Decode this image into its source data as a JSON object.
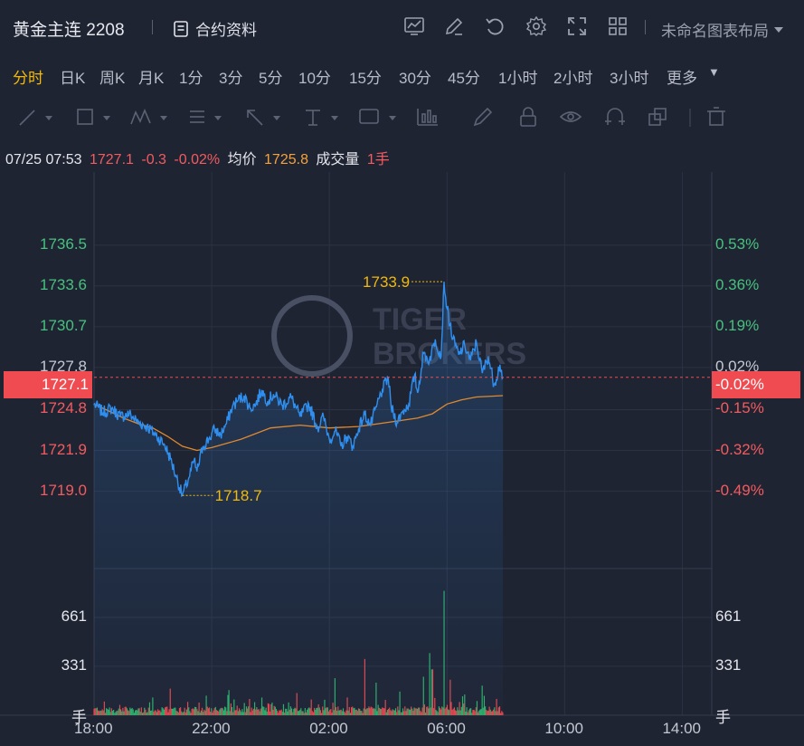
{
  "header": {
    "title": "黄金主连 2208",
    "contract_info_label": "合约资料",
    "layout_label": "未命名图表布局",
    "icons": [
      "chart-icon",
      "edit-icon",
      "undo-icon",
      "gear-icon",
      "fullscreen-icon",
      "grid-icon",
      "doc-icon",
      "caret-down-icon"
    ]
  },
  "periods": [
    "分时",
    "日K",
    "周K",
    "月K",
    "1分",
    "3分",
    "5分",
    "10分",
    "15分",
    "30分",
    "45分",
    "1小时",
    "2小时",
    "3小时",
    "更多"
  ],
  "active_period": "分时",
  "quote": {
    "datetime": "07/25 07:53",
    "price": "1727.1",
    "change": "-0.3",
    "change_pct": "-0.02%",
    "avg_label": "均价",
    "avg_value": "1725.8",
    "volume_label": "成交量",
    "volume_value": "1手"
  },
  "watermark": "TIGER BROKERS",
  "colors": {
    "bg": "#1f2433",
    "price_line": "#2f8ff0",
    "avg_line": "#e0892f",
    "up": "#f25b5f",
    "down": "#47c17e",
    "accent": "#f0b90b"
  },
  "chart_data": {
    "type": "line",
    "price_axis": {
      "left_labels": [
        "1736.5",
        "1733.6",
        "1730.7",
        "1727.8",
        "1724.8",
        "1721.9",
        "1719.0"
      ],
      "right_labels": [
        "0.53%",
        "0.36%",
        "0.19%",
        "0.02%",
        "-0.15%",
        "-0.32%",
        "-0.49%"
      ],
      "ylim": [
        1713.5,
        1741.7
      ]
    },
    "x_labels": [
      "18:00",
      "22:00",
      "02:00",
      "06:00",
      "10:00",
      "14:00"
    ],
    "x_range_hours": [
      0,
      21
    ],
    "current_price": {
      "value": 1727.1,
      "left_label": "1727.1",
      "right_label": "-0.02%"
    },
    "annotations": {
      "high": {
        "label": "1733.9",
        "value": 1733.9,
        "t": 11.9
      },
      "low": {
        "label": "1718.7",
        "value": 1718.7,
        "t": 3.0
      }
    },
    "price_keypoints": [
      [
        0.0,
        1725.2
      ],
      [
        0.3,
        1724.6
      ],
      [
        0.6,
        1724.9
      ],
      [
        0.9,
        1724.3
      ],
      [
        1.2,
        1724.5
      ],
      [
        1.5,
        1723.9
      ],
      [
        1.8,
        1723.6
      ],
      [
        2.1,
        1723.0
      ],
      [
        2.4,
        1722.3
      ],
      [
        2.6,
        1721.3
      ],
      [
        2.8,
        1720.0
      ],
      [
        3.0,
        1718.7
      ],
      [
        3.2,
        1719.8
      ],
      [
        3.4,
        1721.2
      ],
      [
        3.5,
        1720.4
      ],
      [
        3.7,
        1722.2
      ],
      [
        3.9,
        1722.7
      ],
      [
        4.1,
        1723.4
      ],
      [
        4.3,
        1723.0
      ],
      [
        4.5,
        1723.8
      ],
      [
        4.7,
        1725.0
      ],
      [
        4.9,
        1725.5
      ],
      [
        5.1,
        1725.8
      ],
      [
        5.3,
        1724.9
      ],
      [
        5.5,
        1725.2
      ],
      [
        5.7,
        1726.2
      ],
      [
        5.9,
        1725.4
      ],
      [
        6.1,
        1725.9
      ],
      [
        6.4,
        1725.1
      ],
      [
        6.7,
        1725.7
      ],
      [
        7.0,
        1724.3
      ],
      [
        7.3,
        1725.2
      ],
      [
        7.6,
        1723.5
      ],
      [
        7.8,
        1724.3
      ],
      [
        8.0,
        1722.7
      ],
      [
        8.2,
        1723.3
      ],
      [
        8.4,
        1722.2
      ],
      [
        8.6,
        1722.9
      ],
      [
        8.8,
        1722.2
      ],
      [
        9.0,
        1723.5
      ],
      [
        9.2,
        1724.5
      ],
      [
        9.4,
        1723.7
      ],
      [
        9.6,
        1725.0
      ],
      [
        9.8,
        1726.2
      ],
      [
        10.0,
        1727.1
      ],
      [
        10.1,
        1725.0
      ],
      [
        10.3,
        1723.9
      ],
      [
        10.5,
        1724.7
      ],
      [
        10.7,
        1725.2
      ],
      [
        10.9,
        1727.3
      ],
      [
        11.0,
        1726.0
      ],
      [
        11.2,
        1728.8
      ],
      [
        11.4,
        1728.3
      ],
      [
        11.6,
        1729.8
      ],
      [
        11.8,
        1728.6
      ],
      [
        11.9,
        1733.9
      ],
      [
        12.0,
        1732.0
      ],
      [
        12.2,
        1729.8
      ],
      [
        12.4,
        1728.7
      ],
      [
        12.6,
        1729.4
      ],
      [
        12.8,
        1728.3
      ],
      [
        13.0,
        1729.6
      ],
      [
        13.2,
        1727.4
      ],
      [
        13.4,
        1728.6
      ],
      [
        13.6,
        1726.6
      ],
      [
        13.8,
        1728.0
      ],
      [
        13.9,
        1727.1
      ]
    ],
    "avg_keypoints": [
      [
        0.0,
        1725.2
      ],
      [
        0.5,
        1724.7
      ],
      [
        1.0,
        1724.2
      ],
      [
        1.5,
        1723.8
      ],
      [
        2.0,
        1723.5
      ],
      [
        2.5,
        1722.9
      ],
      [
        3.0,
        1722.2
      ],
      [
        3.5,
        1721.9
      ],
      [
        4.0,
        1722.1
      ],
      [
        4.5,
        1722.4
      ],
      [
        5.0,
        1722.7
      ],
      [
        5.5,
        1723.1
      ],
      [
        6.0,
        1723.5
      ],
      [
        7.0,
        1723.7
      ],
      [
        8.0,
        1723.5
      ],
      [
        9.0,
        1723.6
      ],
      [
        10.0,
        1723.9
      ],
      [
        11.0,
        1724.2
      ],
      [
        11.5,
        1724.5
      ],
      [
        12.0,
        1725.2
      ],
      [
        12.5,
        1725.5
      ],
      [
        13.0,
        1725.7
      ],
      [
        13.9,
        1725.8
      ]
    ],
    "volume_axis": {
      "labels": [
        "661",
        "331"
      ],
      "unit": "手",
      "max": 991
    },
    "volume_spikes": [
      [
        2.0,
        120
      ],
      [
        2.6,
        180
      ],
      [
        3.2,
        90
      ],
      [
        4.6,
        170
      ],
      [
        5.3,
        110
      ],
      [
        6.9,
        150
      ],
      [
        8.2,
        250
      ],
      [
        8.6,
        120
      ],
      [
        9.2,
        380
      ],
      [
        9.6,
        220
      ],
      [
        10.4,
        160
      ],
      [
        11.2,
        260
      ],
      [
        11.4,
        420
      ],
      [
        11.5,
        310
      ],
      [
        11.9,
        840
      ],
      [
        12.1,
        240
      ],
      [
        12.6,
        140
      ],
      [
        13.2,
        200
      ],
      [
        13.7,
        110
      ]
    ]
  }
}
